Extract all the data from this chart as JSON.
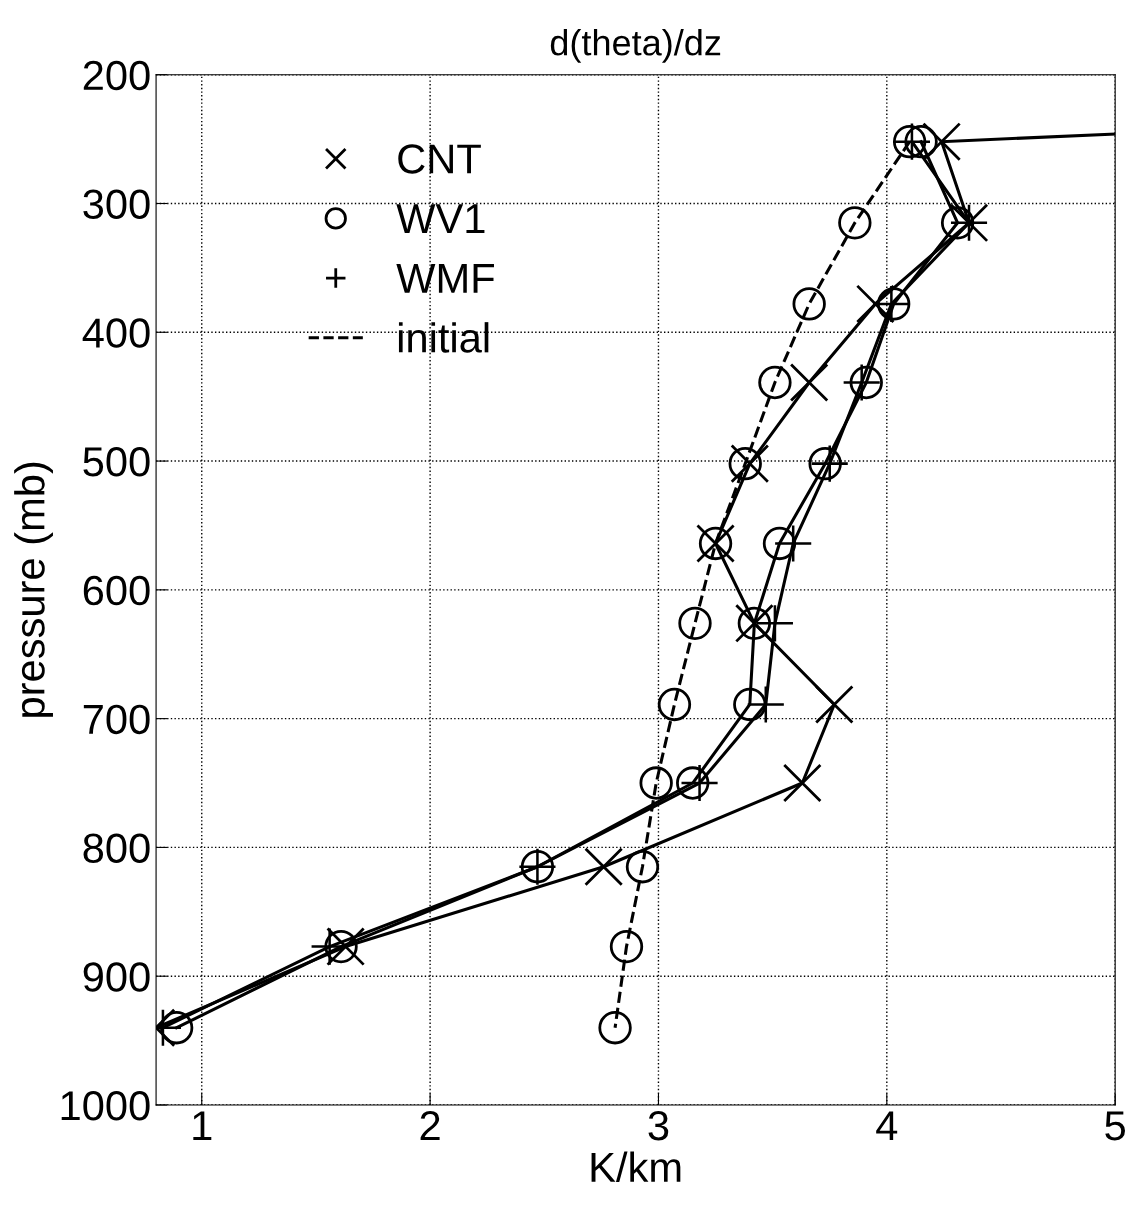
{
  "chart_data": {
    "type": "line",
    "title": "d(theta)/dz",
    "xlabel": "K/km",
    "ylabel": "pressure (mb)",
    "xlim": [
      0.8,
      5
    ],
    "xticks": [
      1,
      2,
      3,
      4,
      5
    ],
    "ylim": [
      1000,
      200
    ],
    "yticks": [
      200,
      300,
      400,
      500,
      600,
      700,
      800,
      900,
      1000
    ],
    "grid": true,
    "legend": "top left",
    "series": [
      {
        "name": "CNT",
        "color": "#000000",
        "marker": "cross",
        "line_style": "solid",
        "x": [
          4.24,
          4.36,
          3.95,
          3.66,
          3.4,
          3.25,
          3.42,
          3.77,
          3.63,
          2.76,
          1.63,
          0.8
        ],
        "values": [
          252,
          315,
          378,
          439,
          502,
          564,
          626,
          689,
          750,
          815,
          877,
          940
        ]
      },
      {
        "color": "#000000",
        "line_style": "solid",
        "x": [
          4.24,
          5.0
        ],
        "values": [
          252,
          246
        ]
      },
      {
        "name": "WV1",
        "color": "#000000",
        "marker": "circle",
        "line_style": "solid",
        "x": [
          4.15,
          4.31,
          4.03,
          3.91,
          3.73,
          3.53,
          3.42,
          3.4,
          3.15,
          2.47,
          1.61,
          0.89
        ],
        "values": [
          252,
          315,
          378,
          439,
          502,
          564,
          626,
          689,
          750,
          815,
          877,
          940
        ]
      },
      {
        "name": "WMF",
        "color": "#000000",
        "marker": "cross",
        "line_style": "solid",
        "x": [
          4.11,
          4.36,
          4.02,
          3.89,
          3.75,
          3.59,
          3.51,
          3.47,
          3.18,
          2.47,
          1.56,
          0.83
        ],
        "values": [
          252,
          315,
          378,
          439,
          502,
          564,
          626,
          689,
          750,
          815,
          877,
          940
        ]
      },
      {
        "name": "initial",
        "color": "#000000",
        "marker": "circle",
        "line_style": "dashed",
        "x": [
          4.1,
          3.86,
          3.66,
          3.51,
          3.38,
          3.25,
          3.16,
          3.07,
          2.99,
          2.93,
          2.86,
          2.81
        ],
        "values": [
          252,
          315,
          378,
          439,
          502,
          564,
          626,
          689,
          750,
          815,
          877,
          940
        ]
      }
    ]
  }
}
